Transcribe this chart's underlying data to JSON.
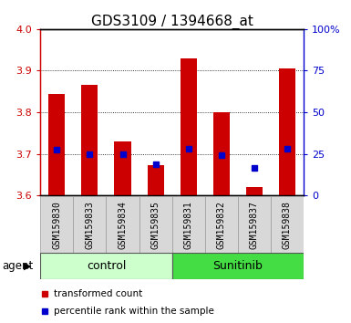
{
  "title": "GDS3109 / 1394668_at",
  "samples": [
    "GSM159830",
    "GSM159833",
    "GSM159834",
    "GSM159835",
    "GSM159831",
    "GSM159832",
    "GSM159837",
    "GSM159838"
  ],
  "red_values": [
    3.845,
    3.865,
    3.73,
    3.672,
    3.93,
    3.8,
    3.62,
    3.905
  ],
  "blue_values": [
    3.71,
    3.7,
    3.7,
    3.675,
    3.712,
    3.698,
    3.666,
    3.712
  ],
  "ymin": 3.6,
  "ymax": 4.0,
  "yticks": [
    3.6,
    3.7,
    3.8,
    3.9,
    4.0
  ],
  "right_ylabels": [
    "0",
    "25",
    "50",
    "75",
    "100%"
  ],
  "right_yticks": [
    0,
    25,
    50,
    75,
    100
  ],
  "bar_bottom": 3.6,
  "red_color": "#cc0000",
  "blue_color": "#0000cc",
  "control_color": "#ccffcc",
  "sunitinib_color": "#44dd44",
  "sample_bg": "#d8d8d8",
  "legend_red": "transformed count",
  "legend_blue": "percentile rank within the sample",
  "bar_width": 0.5,
  "title_fontsize": 11,
  "tick_fontsize": 8,
  "label_fontsize": 7,
  "group_fontsize": 9
}
